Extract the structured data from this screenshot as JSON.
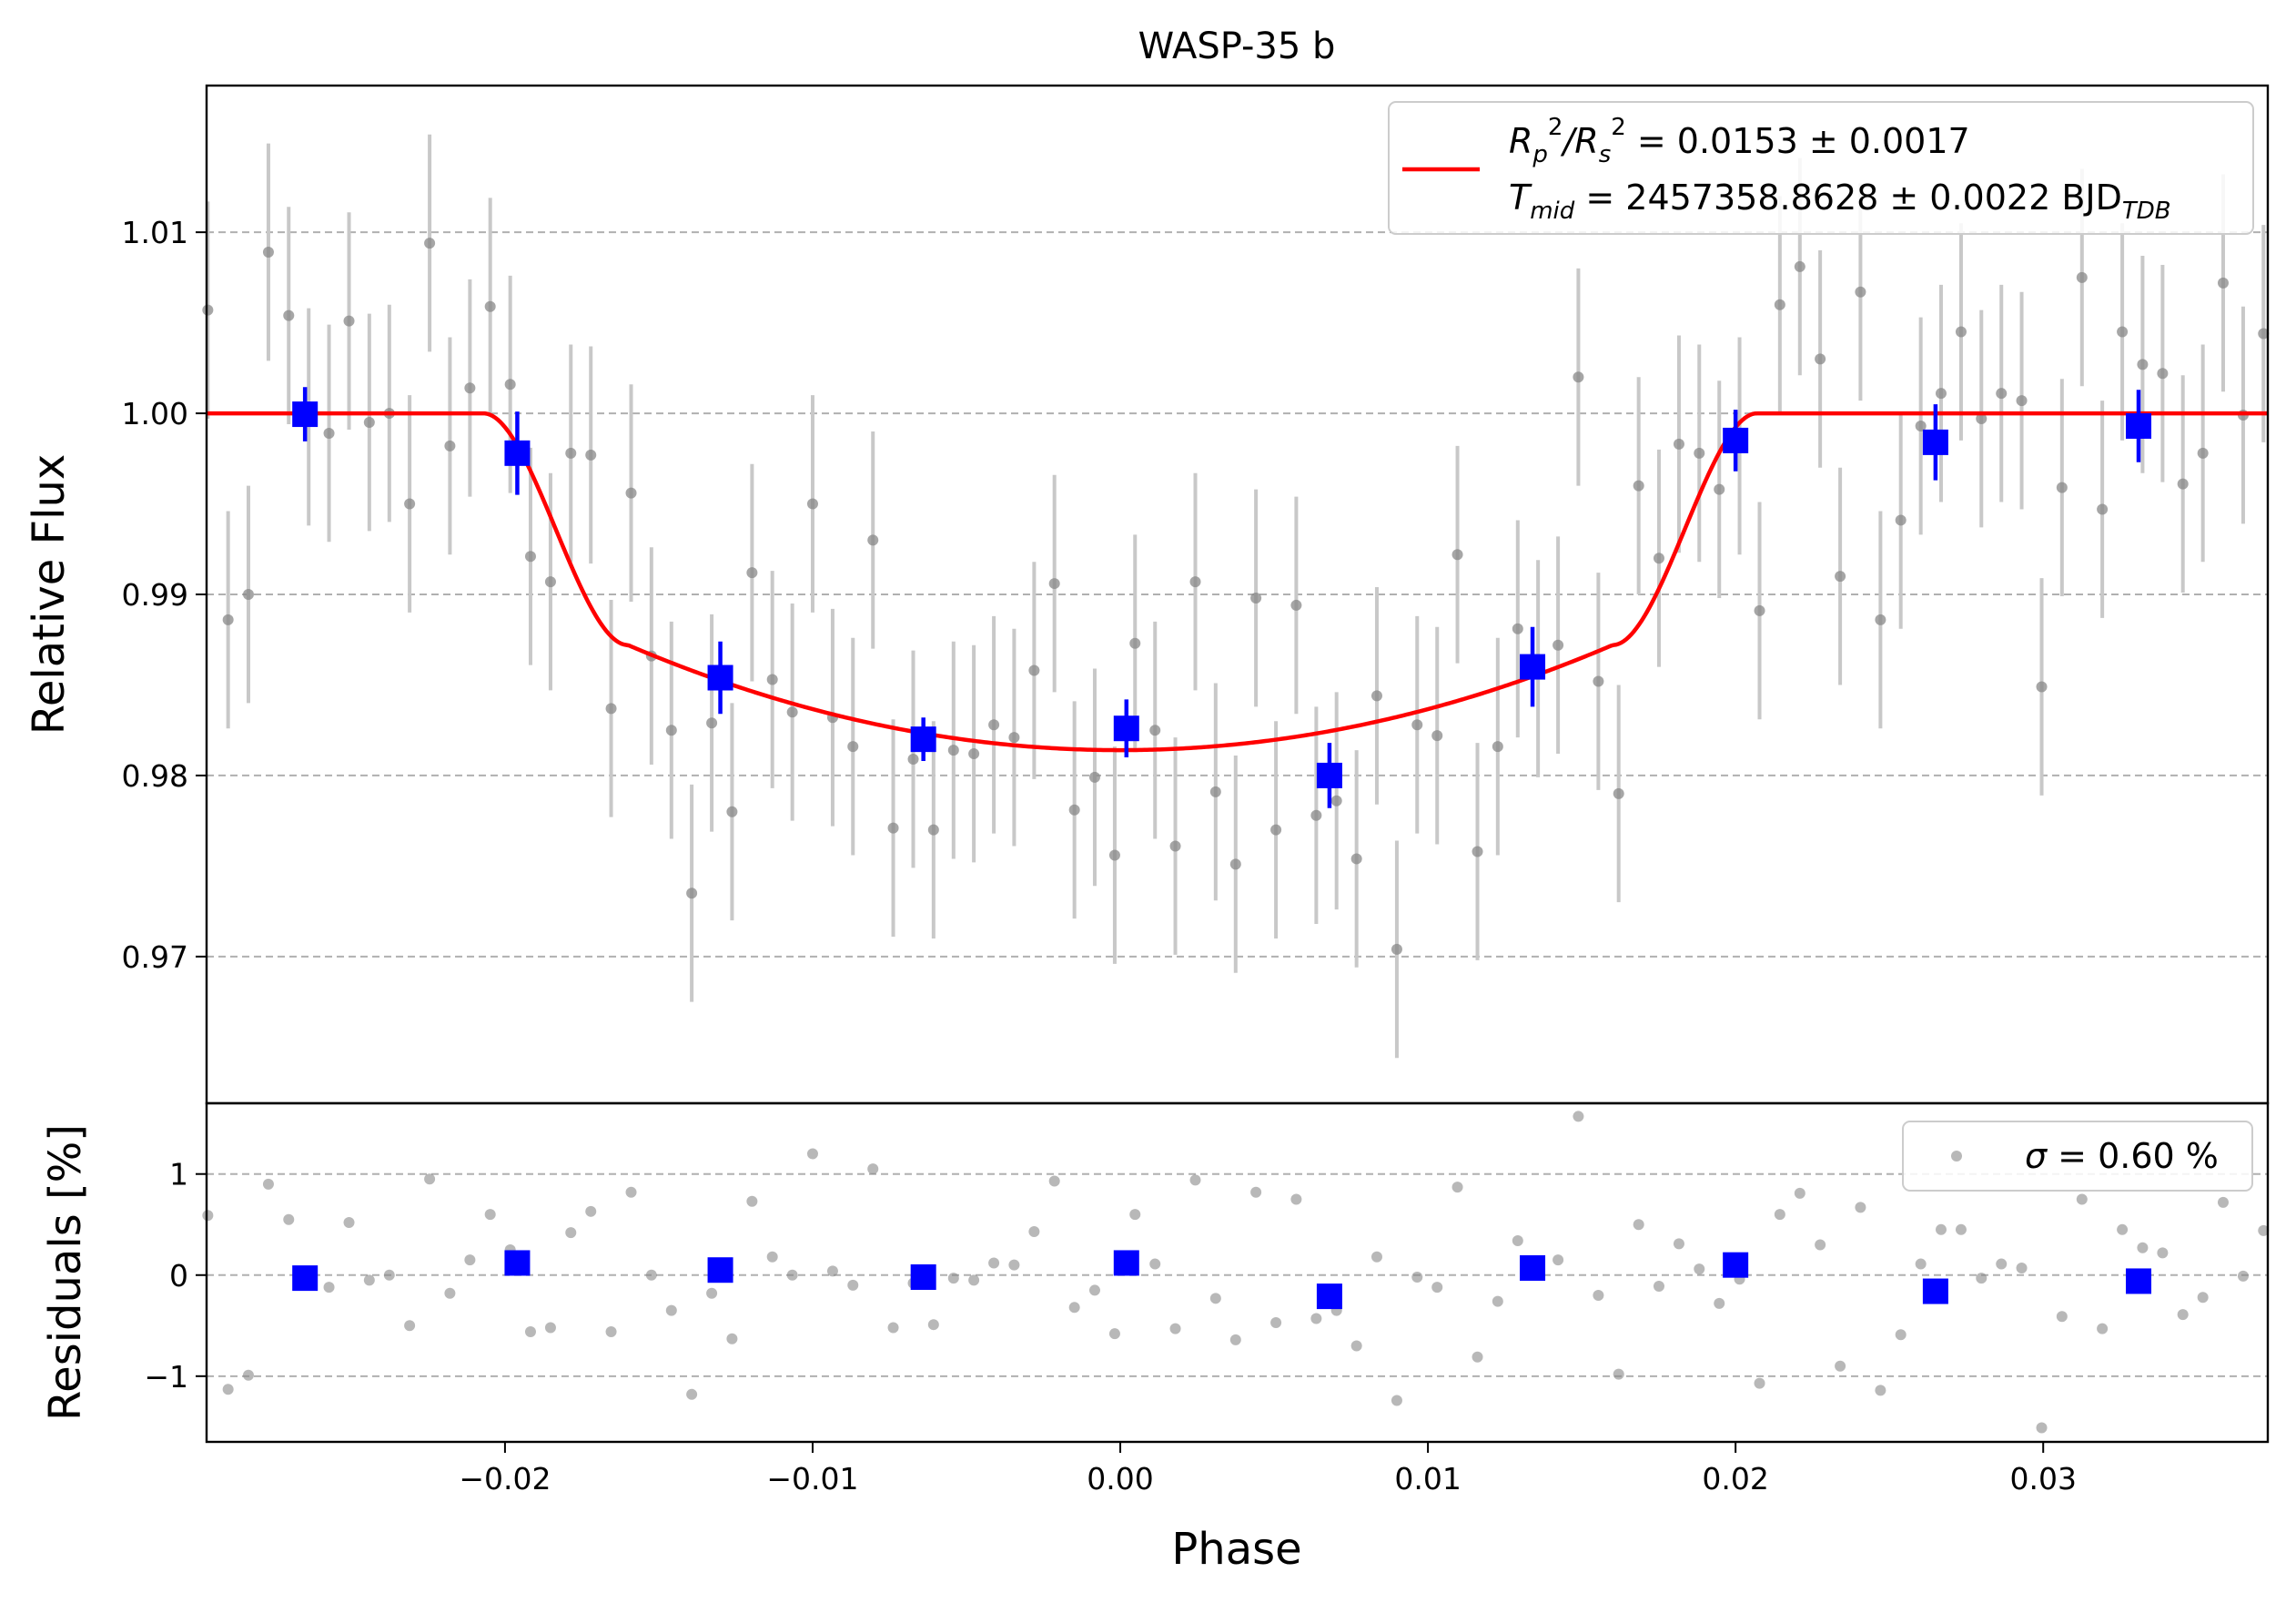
{
  "chart_data": {
    "type": "scatter",
    "title": "WASP-35 b",
    "xlabel": "Phase",
    "ylabel_top": "Relative Flux",
    "ylabel_bottom": "Residuals [%]",
    "xlim": [
      -0.0297,
      0.0373
    ],
    "ylim_top": [
      0.9619,
      1.0181
    ],
    "ylim_bottom": [
      -1.65,
      1.7
    ],
    "grid": "horizontal dashed",
    "x_ticks": [
      {
        "v": -0.02,
        "label": "−0.02"
      },
      {
        "v": -0.01,
        "label": "−0.01"
      },
      {
        "v": 0.0,
        "label": "0.00"
      },
      {
        "v": 0.01,
        "label": "0.01"
      },
      {
        "v": 0.02,
        "label": "0.02"
      },
      {
        "v": 0.03,
        "label": "0.03"
      }
    ],
    "y_ticks_top": [
      {
        "v": 0.97,
        "label": "0.97"
      },
      {
        "v": 0.98,
        "label": "0.98"
      },
      {
        "v": 0.99,
        "label": "0.99"
      },
      {
        "v": 1.0,
        "label": "1.00"
      },
      {
        "v": 1.01,
        "label": "1.01"
      }
    ],
    "y_ticks_bottom": [
      {
        "v": -1,
        "label": "−1"
      },
      {
        "v": 0,
        "label": "0"
      },
      {
        "v": 1,
        "label": "1"
      }
    ],
    "legend_top": {
      "placement": "top-right",
      "line1_sym": "R",
      "line1_sub1": "p",
      "line1_sup1": "2",
      "line1_slash": "/R",
      "line1_sub2": "s",
      "line1_sup2": "2",
      "line1_value": " = 0.0153 ± 0.0017",
      "line2_sym": "T",
      "line2_sub": "mid",
      "line2_value": " = 2457358.8628 ± 0.0022 BJD",
      "line2_unit_sub": "TDB"
    },
    "legend_bottom": {
      "placement": "top-right",
      "sym": "σ",
      "value": " = 0.60 %"
    },
    "colors": {
      "model": "#ff0000",
      "binned": "#0000ff",
      "raw_points": "#888888",
      "raw_errorbars": "#c8c8c8",
      "grid": "#b0b0b0"
    },
    "model": {
      "name": "transit model",
      "baseline": 1.0,
      "t1": -0.0207,
      "t2": -0.016,
      "t3": 0.016,
      "t4": 0.0207,
      "depth_center": 0.9814,
      "depth_at_t2": 0.9872
    },
    "binned_flux": [
      {
        "x": -0.0265,
        "y": 0.99995,
        "err": 0.0015
      },
      {
        "x": -0.0196,
        "y": 0.9978,
        "err": 0.0023
      },
      {
        "x": -0.013,
        "y": 0.9854,
        "err": 0.002
      },
      {
        "x": -0.0064,
        "y": 0.982,
        "err": 0.0012
      },
      {
        "x": 0.0002,
        "y": 0.9826,
        "err": 0.0016
      },
      {
        "x": 0.0068,
        "y": 0.98,
        "err": 0.0018
      },
      {
        "x": 0.0134,
        "y": 0.986,
        "err": 0.0022
      },
      {
        "x": 0.02,
        "y": 0.9985,
        "err": 0.0017
      },
      {
        "x": 0.0265,
        "y": 0.9984,
        "err": 0.0021
      },
      {
        "x": 0.0331,
        "y": 0.9993,
        "err": 0.002
      }
    ],
    "binned_residuals": [
      {
        "x": -0.0265,
        "y": -0.03
      },
      {
        "x": -0.0196,
        "y": 0.12
      },
      {
        "x": -0.013,
        "y": 0.05
      },
      {
        "x": -0.0064,
        "y": -0.02
      },
      {
        "x": 0.0002,
        "y": 0.12
      },
      {
        "x": 0.0068,
        "y": -0.21
      },
      {
        "x": 0.0134,
        "y": 0.07
      },
      {
        "x": 0.02,
        "y": 0.1
      },
      {
        "x": 0.0265,
        "y": -0.16
      },
      {
        "x": 0.0331,
        "y": -0.06
      }
    ],
    "raw_flux": [
      {
        "x": -0.02966,
        "y": 1.0057
      },
      {
        "x": -0.029,
        "y": 0.9886
      },
      {
        "x": -0.02834,
        "y": 0.99
      },
      {
        "x": -0.02769,
        "y": 1.0089
      },
      {
        "x": -0.02703,
        "y": 1.0054
      },
      {
        "x": -0.02638,
        "y": 0.9998
      },
      {
        "x": -0.02572,
        "y": 0.9989
      },
      {
        "x": -0.02507,
        "y": 1.0051
      },
      {
        "x": -0.02441,
        "y": 0.9995
      },
      {
        "x": -0.02376,
        "y": 1.0
      },
      {
        "x": -0.0231,
        "y": 0.995
      },
      {
        "x": -0.02245,
        "y": 1.0094
      },
      {
        "x": -0.02179,
        "y": 0.9982
      },
      {
        "x": -0.02114,
        "y": 1.0014
      },
      {
        "x": -0.02048,
        "y": 1.0059
      },
      {
        "x": -0.01983,
        "y": 1.0016
      },
      {
        "x": -0.01917,
        "y": 0.9921
      },
      {
        "x": -0.01852,
        "y": 0.9907
      },
      {
        "x": -0.01786,
        "y": 0.9978
      },
      {
        "x": -0.01721,
        "y": 0.9977
      },
      {
        "x": -0.01655,
        "y": 0.9837
      },
      {
        "x": -0.0159,
        "y": 0.9956
      },
      {
        "x": -0.01524,
        "y": 0.9866
      },
      {
        "x": -0.01459,
        "y": 0.9825
      },
      {
        "x": -0.01393,
        "y": 0.9735
      },
      {
        "x": -0.01328,
        "y": 0.9829
      },
      {
        "x": -0.01262,
        "y": 0.978
      },
      {
        "x": -0.01197,
        "y": 0.9912
      },
      {
        "x": -0.01131,
        "y": 0.9853
      },
      {
        "x": -0.01066,
        "y": 0.9835
      },
      {
        "x": -0.01,
        "y": 0.995
      },
      {
        "x": -0.00935,
        "y": 0.9832
      },
      {
        "x": -0.00869,
        "y": 0.9816
      },
      {
        "x": -0.00804,
        "y": 0.993
      },
      {
        "x": -0.00738,
        "y": 0.9771
      },
      {
        "x": -0.00673,
        "y": 0.9809
      },
      {
        "x": -0.00607,
        "y": 0.977
      },
      {
        "x": -0.00542,
        "y": 0.9814
      },
      {
        "x": -0.00476,
        "y": 0.9812
      },
      {
        "x": -0.00411,
        "y": 0.9828
      },
      {
        "x": -0.00345,
        "y": 0.9821
      },
      {
        "x": -0.0028,
        "y": 0.9858
      },
      {
        "x": -0.00214,
        "y": 0.9906
      },
      {
        "x": -0.00149,
        "y": 0.9781
      },
      {
        "x": -0.00083,
        "y": 0.9799
      },
      {
        "x": -0.00018,
        "y": 0.9756
      },
      {
        "x": 0.00048,
        "y": 0.9873
      },
      {
        "x": 0.00113,
        "y": 0.9825
      },
      {
        "x": 0.00179,
        "y": 0.9761
      },
      {
        "x": 0.00244,
        "y": 0.9907
      },
      {
        "x": 0.0031,
        "y": 0.9791
      },
      {
        "x": 0.00375,
        "y": 0.9751
      },
      {
        "x": 0.00441,
        "y": 0.9898
      },
      {
        "x": 0.00506,
        "y": 0.977
      },
      {
        "x": 0.00572,
        "y": 0.9894
      },
      {
        "x": 0.00637,
        "y": 0.9778
      },
      {
        "x": 0.00703,
        "y": 0.9786
      },
      {
        "x": 0.00768,
        "y": 0.9754
      },
      {
        "x": 0.00834,
        "y": 0.9844
      },
      {
        "x": 0.00899,
        "y": 0.9704
      },
      {
        "x": 0.00965,
        "y": 0.9828
      },
      {
        "x": 0.0103,
        "y": 0.9822
      },
      {
        "x": 0.01096,
        "y": 0.9922
      },
      {
        "x": 0.01161,
        "y": 0.9758
      },
      {
        "x": 0.01227,
        "y": 0.9816
      },
      {
        "x": 0.01292,
        "y": 0.9881
      },
      {
        "x": 0.01358,
        "y": 0.9859
      },
      {
        "x": 0.01423,
        "y": 0.9872
      },
      {
        "x": 0.01489,
        "y": 1.002
      },
      {
        "x": 0.01554,
        "y": 0.9852
      },
      {
        "x": 0.0162,
        "y": 0.979
      },
      {
        "x": 0.01685,
        "y": 0.996
      },
      {
        "x": 0.01751,
        "y": 0.992
      },
      {
        "x": 0.01816,
        "y": 0.9983
      },
      {
        "x": 0.01882,
        "y": 0.9978
      },
      {
        "x": 0.01947,
        "y": 0.9958
      },
      {
        "x": 0.02013,
        "y": 0.9982
      },
      {
        "x": 0.02078,
        "y": 0.9891
      },
      {
        "x": 0.02144,
        "y": 1.006
      },
      {
        "x": 0.02209,
        "y": 1.0081
      },
      {
        "x": 0.02275,
        "y": 1.003
      },
      {
        "x": 0.0234,
        "y": 0.991
      },
      {
        "x": 0.02406,
        "y": 1.0067
      },
      {
        "x": 0.02471,
        "y": 0.9886
      },
      {
        "x": 0.02537,
        "y": 0.9941
      },
      {
        "x": 0.02602,
        "y": 0.9993
      },
      {
        "x": 0.02668,
        "y": 1.0011
      },
      {
        "x": 0.02733,
        "y": 1.0045
      },
      {
        "x": 0.02799,
        "y": 0.9997
      },
      {
        "x": 0.02864,
        "y": 1.0011
      },
      {
        "x": 0.0293,
        "y": 1.0007
      },
      {
        "x": 0.02995,
        "y": 0.9849
      },
      {
        "x": 0.03061,
        "y": 0.9959
      },
      {
        "x": 0.03126,
        "y": 1.0075
      },
      {
        "x": 0.03192,
        "y": 0.9947
      },
      {
        "x": 0.03257,
        "y": 1.0045
      },
      {
        "x": 0.03323,
        "y": 1.0027
      },
      {
        "x": 0.03388,
        "y": 1.0022
      },
      {
        "x": 0.03454,
        "y": 0.9961
      },
      {
        "x": 0.03519,
        "y": 0.9978
      },
      {
        "x": 0.03585,
        "y": 1.0072
      },
      {
        "x": 0.0365,
        "y": 0.9999
      },
      {
        "x": 0.03716,
        "y": 1.0044
      }
    ],
    "raw_flux_err": 0.006,
    "raw_residuals": [
      {
        "x": -0.02966,
        "y": 0.59
      },
      {
        "x": -0.029,
        "y": -1.13
      },
      {
        "x": -0.02834,
        "y": -0.99
      },
      {
        "x": -0.02769,
        "y": 0.9
      },
      {
        "x": -0.02703,
        "y": 0.55
      },
      {
        "x": -0.02638,
        "y": -0.03
      },
      {
        "x": -0.02572,
        "y": -0.12
      },
      {
        "x": -0.02507,
        "y": 0.52
      },
      {
        "x": -0.02441,
        "y": -0.05
      },
      {
        "x": -0.02376,
        "y": 0.0
      },
      {
        "x": -0.0231,
        "y": -0.5
      },
      {
        "x": -0.02245,
        "y": 0.95
      },
      {
        "x": -0.02179,
        "y": -0.18
      },
      {
        "x": -0.02114,
        "y": 0.15
      },
      {
        "x": -0.02048,
        "y": 0.6
      },
      {
        "x": -0.01983,
        "y": 0.25
      },
      {
        "x": -0.01917,
        "y": -0.56
      },
      {
        "x": -0.01852,
        "y": -0.52
      },
      {
        "x": -0.01786,
        "y": 0.42
      },
      {
        "x": -0.01721,
        "y": 0.63
      },
      {
        "x": -0.01655,
        "y": -0.56
      },
      {
        "x": -0.0159,
        "y": 0.82
      },
      {
        "x": -0.01524,
        "y": 0.0
      },
      {
        "x": -0.01459,
        "y": -0.35
      },
      {
        "x": -0.01393,
        "y": -1.18
      },
      {
        "x": -0.01328,
        "y": -0.18
      },
      {
        "x": -0.01262,
        "y": -0.63
      },
      {
        "x": -0.01197,
        "y": 0.73
      },
      {
        "x": -0.01131,
        "y": 0.18
      },
      {
        "x": -0.01066,
        "y": 0.0
      },
      {
        "x": -0.01,
        "y": 1.2
      },
      {
        "x": -0.00935,
        "y": 0.04
      },
      {
        "x": -0.00869,
        "y": -0.1
      },
      {
        "x": -0.00804,
        "y": 1.05
      },
      {
        "x": -0.00738,
        "y": -0.52
      },
      {
        "x": -0.00673,
        "y": -0.08
      },
      {
        "x": -0.00607,
        "y": -0.49
      },
      {
        "x": -0.00542,
        "y": -0.03
      },
      {
        "x": -0.00476,
        "y": -0.05
      },
      {
        "x": -0.00411,
        "y": 0.12
      },
      {
        "x": -0.00345,
        "y": 0.1
      },
      {
        "x": -0.0028,
        "y": 0.43
      },
      {
        "x": -0.00214,
        "y": 0.93
      },
      {
        "x": -0.00149,
        "y": -0.32
      },
      {
        "x": -0.00083,
        "y": -0.15
      },
      {
        "x": -0.00018,
        "y": -0.58
      },
      {
        "x": 0.00048,
        "y": 0.6
      },
      {
        "x": 0.00113,
        "y": 0.11
      },
      {
        "x": 0.00179,
        "y": -0.53
      },
      {
        "x": 0.00244,
        "y": 0.94
      },
      {
        "x": 0.0031,
        "y": -0.23
      },
      {
        "x": 0.00375,
        "y": -0.64
      },
      {
        "x": 0.00441,
        "y": 0.82
      },
      {
        "x": 0.00506,
        "y": -0.47
      },
      {
        "x": 0.00572,
        "y": 0.75
      },
      {
        "x": 0.00637,
        "y": -0.43
      },
      {
        "x": 0.00703,
        "y": -0.35
      },
      {
        "x": 0.00768,
        "y": -0.7
      },
      {
        "x": 0.00834,
        "y": 0.18
      },
      {
        "x": 0.00899,
        "y": -1.24
      },
      {
        "x": 0.00965,
        "y": -0.02
      },
      {
        "x": 0.0103,
        "y": -0.12
      },
      {
        "x": 0.01096,
        "y": 0.87
      },
      {
        "x": 0.01161,
        "y": -0.81
      },
      {
        "x": 0.01227,
        "y": -0.26
      },
      {
        "x": 0.01292,
        "y": 0.34
      },
      {
        "x": 0.01358,
        "y": 0.04
      },
      {
        "x": 0.01423,
        "y": 0.15
      },
      {
        "x": 0.01489,
        "y": 1.57
      },
      {
        "x": 0.01554,
        "y": -0.2
      },
      {
        "x": 0.0162,
        "y": -0.98
      },
      {
        "x": 0.01685,
        "y": 0.5
      },
      {
        "x": 0.01751,
        "y": -0.11
      },
      {
        "x": 0.01816,
        "y": 0.31
      },
      {
        "x": 0.01882,
        "y": 0.06
      },
      {
        "x": 0.01947,
        "y": -0.28
      },
      {
        "x": 0.02013,
        "y": -0.04
      },
      {
        "x": 0.02078,
        "y": -1.07
      },
      {
        "x": 0.02144,
        "y": 0.6
      },
      {
        "x": 0.02209,
        "y": 0.81
      },
      {
        "x": 0.02275,
        "y": 0.3
      },
      {
        "x": 0.0234,
        "y": -0.9
      },
      {
        "x": 0.02406,
        "y": 0.67
      },
      {
        "x": 0.02471,
        "y": -1.14
      },
      {
        "x": 0.02537,
        "y": -0.59
      },
      {
        "x": 0.02602,
        "y": 0.11
      },
      {
        "x": 0.02668,
        "y": 0.45
      },
      {
        "x": 0.02733,
        "y": 0.45
      },
      {
        "x": 0.02799,
        "y": -0.03
      },
      {
        "x": 0.02864,
        "y": 0.11
      },
      {
        "x": 0.0293,
        "y": 0.07
      },
      {
        "x": 0.02995,
        "y": -1.51
      },
      {
        "x": 0.03061,
        "y": -0.41
      },
      {
        "x": 0.03126,
        "y": 0.75
      },
      {
        "x": 0.03192,
        "y": -0.53
      },
      {
        "x": 0.03257,
        "y": 0.45
      },
      {
        "x": 0.03323,
        "y": 0.27
      },
      {
        "x": 0.03388,
        "y": 0.22
      },
      {
        "x": 0.03454,
        "y": -0.39
      },
      {
        "x": 0.03519,
        "y": -0.22
      },
      {
        "x": 0.03585,
        "y": 0.72
      },
      {
        "x": 0.0365,
        "y": -0.01
      },
      {
        "x": 0.03716,
        "y": 0.44
      }
    ]
  }
}
